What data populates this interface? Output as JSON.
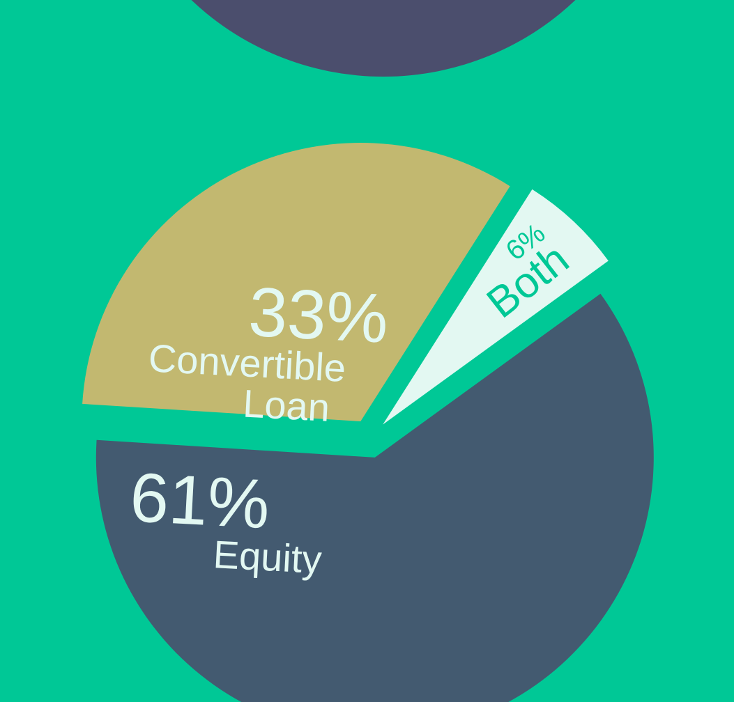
{
  "chart_data": {
    "type": "pie",
    "categories": [
      "Equity",
      "Convertible Loan",
      "Both"
    ],
    "values": [
      61,
      33,
      6
    ],
    "value_labels": [
      "61%",
      "33%",
      "6%"
    ],
    "colors": [
      "#435a70",
      "#c2b870",
      "#e3f8f2"
    ]
  }
}
